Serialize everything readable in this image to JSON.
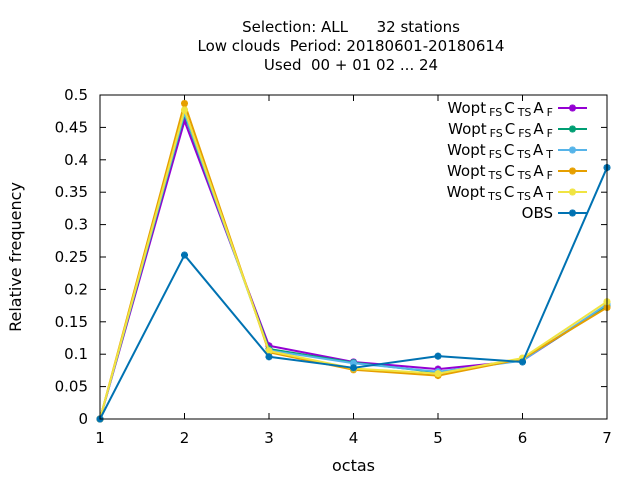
{
  "chart_data": {
    "type": "line",
    "title_lines": [
      "Selection: ALL      32 stations",
      "Low clouds  Period: 20180601-20180614",
      "Used  00 + 01 02 ... 24"
    ],
    "xlabel": "octas",
    "ylabel": "Relative frequency",
    "x": [
      1,
      2,
      3,
      4,
      5,
      6,
      7
    ],
    "xlim": [
      1,
      7
    ],
    "ylim": [
      0,
      0.5
    ],
    "xticks": [
      "1",
      "2",
      "3",
      "4",
      "5",
      "6",
      "7"
    ],
    "yticks": [
      "0",
      "0.05",
      "0.1",
      "0.15",
      "0.2",
      "0.25",
      "0.3",
      "0.35",
      "0.4",
      "0.45",
      "0.5"
    ],
    "legend_position": "top-right",
    "series": [
      {
        "base": "Wopt",
        "sub1": "FS",
        "mid1": "C",
        "sub2": "TS",
        "mid2": "A",
        "sub3": "F",
        "color": "#9400d3",
        "values": [
          0.0,
          0.46,
          0.113,
          0.088,
          0.077,
          0.09,
          0.175
        ]
      },
      {
        "base": "Wopt",
        "sub1": "FS",
        "mid1": "C",
        "sub2": "FS",
        "mid2": "A",
        "sub3": "F",
        "color": "#009e73",
        "values": [
          0.0,
          0.47,
          0.108,
          0.087,
          0.072,
          0.091,
          0.174
        ]
      },
      {
        "base": "Wopt",
        "sub1": "FS",
        "mid1": "C",
        "sub2": "TS",
        "mid2": "A",
        "sub3": "T",
        "color": "#56b4e9",
        "values": [
          0.0,
          0.472,
          0.106,
          0.086,
          0.073,
          0.09,
          0.177
        ]
      },
      {
        "base": "Wopt",
        "sub1": "TS",
        "mid1": "C",
        "sub2": "TS",
        "mid2": "A",
        "sub3": "F",
        "color": "#e69f00",
        "values": [
          0.0,
          0.487,
          0.103,
          0.076,
          0.067,
          0.093,
          0.172
        ]
      },
      {
        "base": "Wopt",
        "sub1": "TS",
        "mid1": "C",
        "sub2": "TS",
        "mid2": "A",
        "sub3": "T",
        "color": "#f0e442",
        "values": [
          0.0,
          0.477,
          0.105,
          0.078,
          0.07,
          0.094,
          0.181
        ]
      },
      {
        "base": "OBS",
        "sub1": "",
        "mid1": "",
        "sub2": "",
        "mid2": "",
        "sub3": "",
        "color": "#0072b2",
        "values": [
          0.0,
          0.253,
          0.096,
          0.079,
          0.097,
          0.088,
          0.388
        ]
      }
    ]
  }
}
